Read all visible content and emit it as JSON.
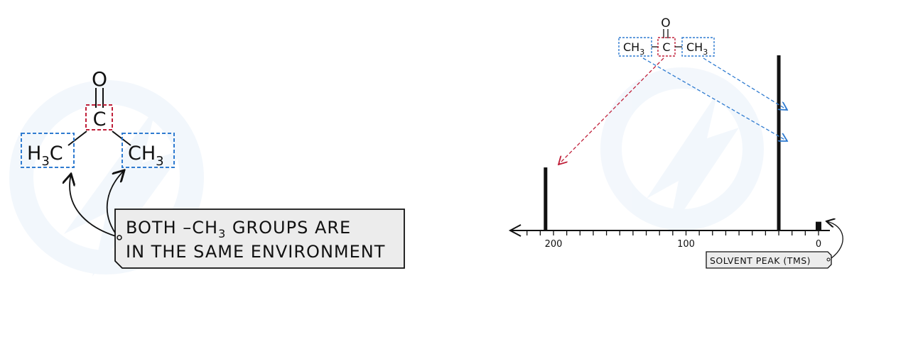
{
  "left_molecule": {
    "carbonyl_o": "O",
    "central_c": "C",
    "left_group_main": "H",
    "left_group_sub": "3",
    "left_group_tail": "C",
    "right_group_main": "CH",
    "right_group_sub": "3"
  },
  "note": {
    "line1_a": "BOTH –CH",
    "line1_sub": "3",
    "line1_b": " GROUPS ARE",
    "line2": "IN THE SAME ENVIRONMENT"
  },
  "spectrum_molecule": {
    "o": "O",
    "left_main": "CH",
    "left_sub": "3",
    "center": "C",
    "right_main": "CH",
    "right_sub": "3"
  },
  "spectrum": {
    "tick_labels": [
      "200",
      "100",
      "0"
    ],
    "solvent_label": "SOLVENT  PEAK  (TMS)"
  },
  "chart_data": {
    "type": "bar",
    "xlabel": "",
    "ylabel": "",
    "x_reversed": true,
    "xlim": [
      220,
      -5
    ],
    "x_ticks_labeled": [
      200,
      100,
      0
    ],
    "x_minor_tick_step": 10,
    "peaks": [
      {
        "shift": 206,
        "relative_height": 0.36
      },
      {
        "shift": 30,
        "relative_height": 1.0
      },
      {
        "shift": 0,
        "relative_height": 0.05
      }
    ]
  },
  "colors": {
    "red_box": "#c0203a",
    "blue_box": "#2f7bd0",
    "ink": "#111111",
    "note_bg": "#ececec",
    "watermark": "#eef4fb"
  }
}
